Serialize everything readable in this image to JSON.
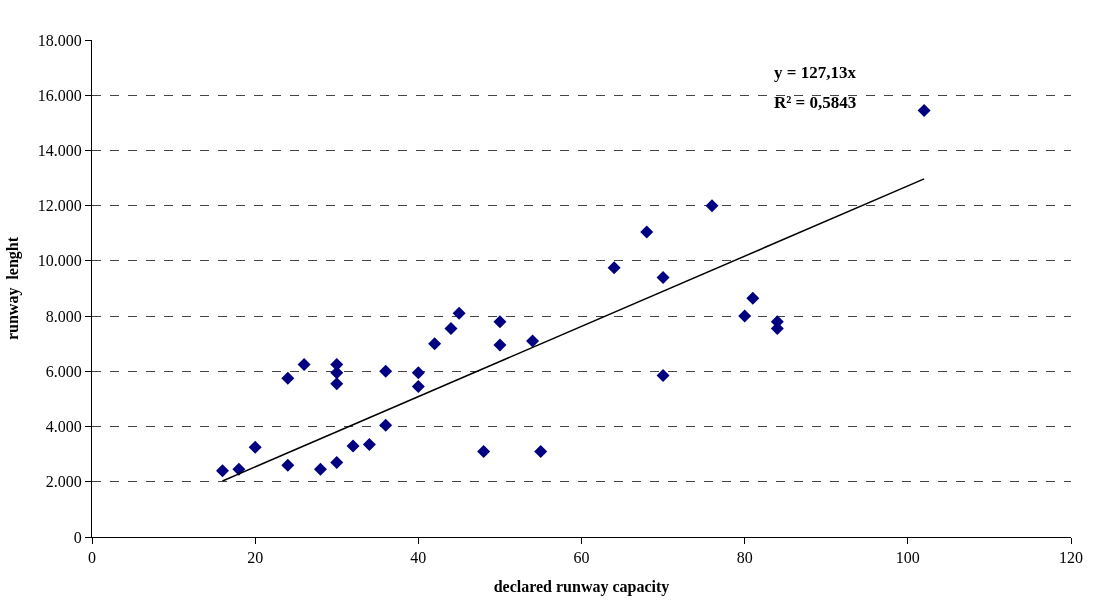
{
  "chart_data": {
    "type": "scatter",
    "xlabel": "declared runway capacity",
    "ylabel": "runway  lenght",
    "marker": "diamond",
    "grid": "y",
    "xlim": [
      0,
      120
    ],
    "xticks": [
      0,
      20,
      40,
      60,
      80,
      100,
      120
    ],
    "ylim": [
      0,
      18000
    ],
    "yticks": [
      {
        "value": 0,
        "label": "0"
      },
      {
        "value": 2000,
        "label": "2.000"
      },
      {
        "value": 4000,
        "label": "4.000"
      },
      {
        "value": 6000,
        "label": "6.000"
      },
      {
        "value": 8000,
        "label": "8.000"
      },
      {
        "value": 10000,
        "label": "10.000"
      },
      {
        "value": 12000,
        "label": "12.000"
      },
      {
        "value": 14000,
        "label": "14.000"
      },
      {
        "value": 16000,
        "label": "16.000"
      },
      {
        "value": 18000,
        "label": "18.000"
      }
    ],
    "series": [
      {
        "color": "#000080",
        "x": [
          16,
          18,
          20,
          24,
          24,
          26,
          28,
          30,
          30,
          30,
          30,
          32,
          34,
          36,
          36,
          40,
          40,
          42,
          44,
          45,
          48,
          50,
          50,
          54,
          55,
          64,
          68,
          70,
          70,
          76,
          80,
          81,
          84,
          84,
          102
        ],
        "values": [
          2400,
          2450,
          3250,
          5750,
          2600,
          6250,
          2450,
          6250,
          5950,
          5550,
          2700,
          3300,
          3350,
          6000,
          4050,
          5950,
          5450,
          7000,
          7550,
          8100,
          3100,
          7800,
          6950,
          7100,
          3100,
          9750,
          11050,
          9400,
          5850,
          12000,
          8000,
          8650,
          7800,
          7550,
          15450
        ]
      },
      {
        "type": "line",
        "color": "#000000",
        "marker": "none",
        "x": [
          16,
          102
        ],
        "values": [
          2030,
          12970
        ]
      }
    ],
    "annotations": [
      "y = 127,13x",
      "R² = 0,5843"
    ]
  }
}
